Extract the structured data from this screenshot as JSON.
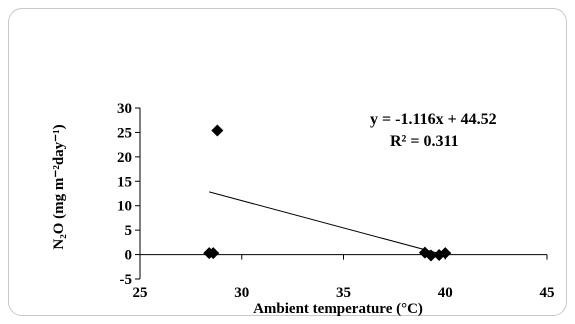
{
  "chart_data": {
    "type": "scatter",
    "xlabel": "Ambient temperature (°C)",
    "ylabel": "N₂O (mg m⁻²day⁻¹)",
    "xlim": [
      25,
      45
    ],
    "ylim": [
      -5,
      30
    ],
    "xticks": [
      "25",
      "30",
      "35",
      "40",
      "45"
    ],
    "yticks": [
      "-5",
      "0",
      "5",
      "10",
      "15",
      "20",
      "25",
      "30"
    ],
    "grid": false,
    "points": [
      {
        "x": 28.4,
        "y": 0.3
      },
      {
        "x": 28.6,
        "y": 0.3
      },
      {
        "x": 28.8,
        "y": 25.4
      },
      {
        "x": 39.0,
        "y": 0.4
      },
      {
        "x": 39.3,
        "y": -0.2
      },
      {
        "x": 39.7,
        "y": -0.1
      },
      {
        "x": 40.0,
        "y": 0.3
      }
    ],
    "trendline": {
      "slope": -1.116,
      "intercept": 44.52,
      "x_range": [
        28.4,
        40.0
      ]
    },
    "annotations": {
      "equation": "y = -1.116x + 44.52",
      "r_squared": "R² = 0.311"
    },
    "colors": {
      "marker": "#000000",
      "line": "#000000"
    }
  }
}
